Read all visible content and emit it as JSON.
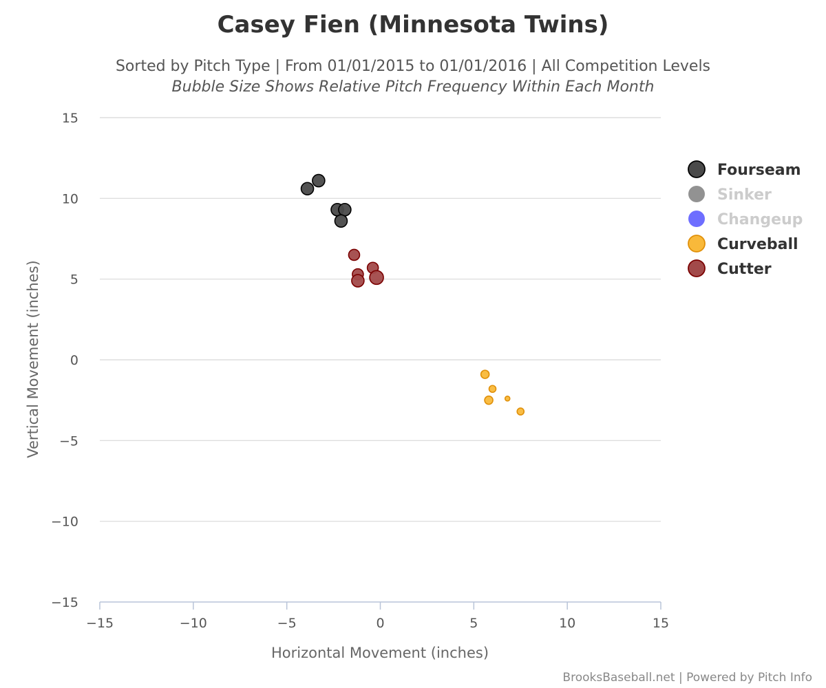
{
  "chart_data": {
    "type": "scatter",
    "title": "Casey Fien (Minnesota Twins)",
    "subtitle": "Sorted by Pitch Type | From 01/01/2015 to 01/01/2016 | All Competition Levels",
    "subtitle2": "Bubble Size Shows Relative Pitch Frequency Within Each Month",
    "xlabel": "Horizontal Movement (inches)",
    "ylabel": "Vertical Movement (inches)",
    "xlim": [
      -15,
      15
    ],
    "ylim": [
      -15,
      15
    ],
    "xticks": [
      "−15",
      "−10",
      "−5",
      "0",
      "5",
      "10",
      "15"
    ],
    "yticks": [
      "15",
      "10",
      "5",
      "0",
      "−5",
      "−10",
      "−15"
    ],
    "grid": "horizontal",
    "legend_position": "right",
    "series": [
      {
        "name": "Fourseam",
        "color": "#4a4a4a",
        "stroke": "#000000",
        "visible": true,
        "points": [
          {
            "x": -3.9,
            "y": 10.6,
            "size": 9
          },
          {
            "x": -3.3,
            "y": 11.1,
            "size": 9
          },
          {
            "x": -2.3,
            "y": 9.3,
            "size": 9
          },
          {
            "x": -1.9,
            "y": 9.3,
            "size": 9
          },
          {
            "x": -2.1,
            "y": 8.6,
            "size": 9
          }
        ]
      },
      {
        "name": "Sinker",
        "color": "#7f7f7f",
        "stroke": "#555555",
        "visible": false,
        "points": []
      },
      {
        "name": "Changeup",
        "color": "#5555ff",
        "stroke": "#2222cc",
        "visible": false,
        "points": []
      },
      {
        "name": "Curveball",
        "color": "#f9b93a",
        "stroke": "#e0900a",
        "visible": true,
        "points": [
          {
            "x": 5.6,
            "y": -0.9,
            "size": 6
          },
          {
            "x": 6.0,
            "y": -1.8,
            "size": 5
          },
          {
            "x": 5.8,
            "y": -2.5,
            "size": 6
          },
          {
            "x": 6.8,
            "y": -2.4,
            "size": 3.5
          },
          {
            "x": 7.5,
            "y": -3.2,
            "size": 5
          }
        ]
      },
      {
        "name": "Cutter",
        "color": "#a24a4a",
        "stroke": "#7a0000",
        "visible": true,
        "points": [
          {
            "x": -1.4,
            "y": 6.5,
            "size": 8
          },
          {
            "x": -0.4,
            "y": 5.7,
            "size": 8
          },
          {
            "x": -1.2,
            "y": 5.3,
            "size": 8
          },
          {
            "x": -1.2,
            "y": 4.9,
            "size": 9
          },
          {
            "x": -0.2,
            "y": 5.1,
            "size": 10
          }
        ]
      }
    ]
  },
  "credit": "BrooksBaseball.net | Powered by Pitch Info"
}
